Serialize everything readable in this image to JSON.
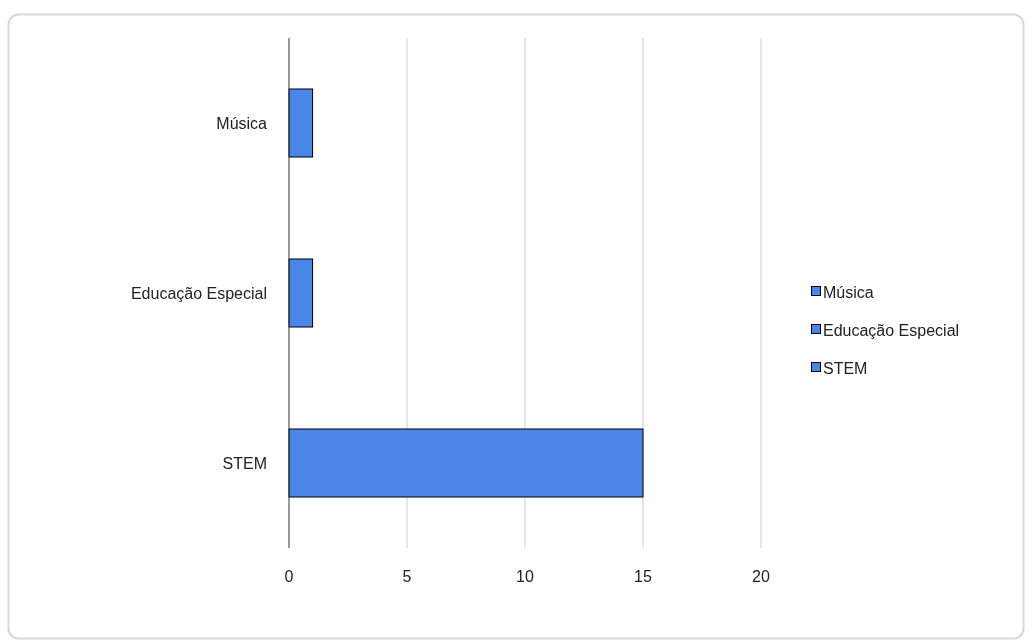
{
  "chart_data": {
    "type": "bar",
    "orientation": "horizontal",
    "stacked": true,
    "categories": [
      "Música",
      "Educação Especial",
      "STEM"
    ],
    "series": [
      {
        "name": "Música",
        "color": "#4a86e8",
        "values": [
          1,
          null,
          null
        ]
      },
      {
        "name": "Educação Especial",
        "color": "#4a86e8",
        "values": [
          null,
          1,
          null
        ]
      },
      {
        "name": "STEM",
        "color": "#4a86e8",
        "values": [
          null,
          null,
          15
        ]
      }
    ],
    "xlim": [
      0,
      20
    ],
    "xticks": [
      0,
      5,
      10,
      15,
      20
    ],
    "grid": "x",
    "legend": "right"
  }
}
